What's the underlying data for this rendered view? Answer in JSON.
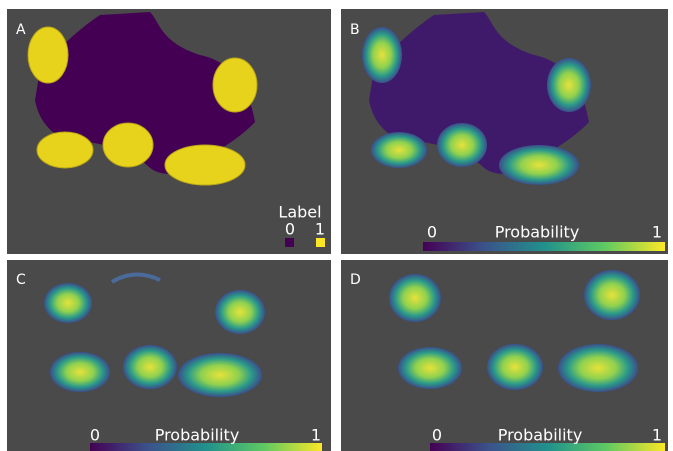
{
  "panels": [
    {
      "label": "A",
      "legend": {
        "title": "Label",
        "items": [
          0,
          1
        ]
      }
    },
    {
      "label": "B",
      "colorbar": {
        "min": 0,
        "title": "Probability",
        "max": 1
      }
    },
    {
      "label": "C",
      "colorbar": {
        "min": 0,
        "title": "Probability",
        "max": 1
      }
    },
    {
      "label": "D",
      "colorbar": {
        "min": 0,
        "title": "Probability",
        "max": 1
      }
    }
  ]
}
